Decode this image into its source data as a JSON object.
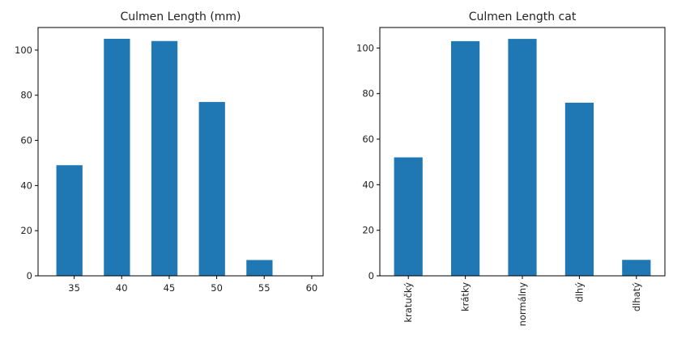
{
  "chart_data": [
    {
      "type": "bar",
      "title": "Culmen Length (mm)",
      "xlabel": "",
      "ylabel": "",
      "x_ticks": [
        35,
        40,
        45,
        50,
        55,
        60
      ],
      "xlim": [
        31.2,
        61.2
      ],
      "bar_width": 2.75,
      "bars": [
        {
          "x": 34.5,
          "value": 49
        },
        {
          "x": 39.5,
          "value": 105
        },
        {
          "x": 44.5,
          "value": 104
        },
        {
          "x": 49.5,
          "value": 77
        },
        {
          "x": 54.5,
          "value": 7
        },
        {
          "x": 59.5,
          "value": 0
        }
      ],
      "y_ticks": [
        0,
        20,
        40,
        60,
        80,
        100
      ],
      "ylim": [
        0,
        110
      ],
      "color": "#1f77b4",
      "grid": false
    },
    {
      "type": "bar",
      "title": "Culmen Length cat",
      "xlabel": "",
      "ylabel": "",
      "categories": [
        "kratučký",
        "krátky",
        "normálny",
        "dlhý",
        "dlhatý"
      ],
      "values": [
        52,
        103,
        104,
        76,
        7
      ],
      "y_ticks": [
        0,
        20,
        40,
        60,
        80,
        100
      ],
      "ylim": [
        0,
        109
      ],
      "color": "#1f77b4",
      "grid": false
    }
  ]
}
